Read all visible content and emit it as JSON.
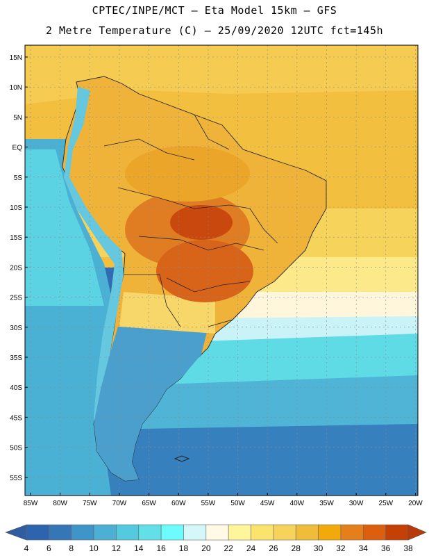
{
  "header": {
    "title_line1": "CPTEC/INPE/MCT –  Eta Model 15km – GFS",
    "title_line2": "2 Metre Temperature (C) – 25/09/2020 12UTC fct=145h"
  },
  "map": {
    "lat_labels": [
      "15N",
      "10N",
      "5N",
      "EQ",
      "5S",
      "10S",
      "15S",
      "20S",
      "25S",
      "30S",
      "35S",
      "40S",
      "45S",
      "50S",
      "55S"
    ],
    "lon_labels": [
      "85W",
      "80W",
      "75W",
      "70W",
      "65W",
      "60W",
      "55W",
      "50W",
      "45W",
      "40W",
      "35W",
      "30W",
      "25W",
      "20W"
    ],
    "region": "South America",
    "colors": {
      "sea_cold": "#2b6cb0",
      "hot": "#c65a10"
    }
  },
  "colorbar": {
    "labels": [
      "4",
      "6",
      "8",
      "10",
      "12",
      "14",
      "16",
      "18",
      "20",
      "22",
      "24",
      "26",
      "28",
      "30",
      "32",
      "34",
      "36",
      "38"
    ],
    "colors": [
      "#2d64ad",
      "#3577b6",
      "#3f95c8",
      "#4bb0d3",
      "#55c9dd",
      "#62dfe7",
      "#6dfbfc",
      "#d4f7fa",
      "#fff9e6",
      "#fff59a",
      "#fbe46e",
      "#f6d35a",
      "#efbd3a",
      "#f2a90a",
      "#e57f1c",
      "#dc5f10",
      "#c44005"
    ],
    "under_color": "#2f5da0",
    "over_color": "#b83a08"
  }
}
